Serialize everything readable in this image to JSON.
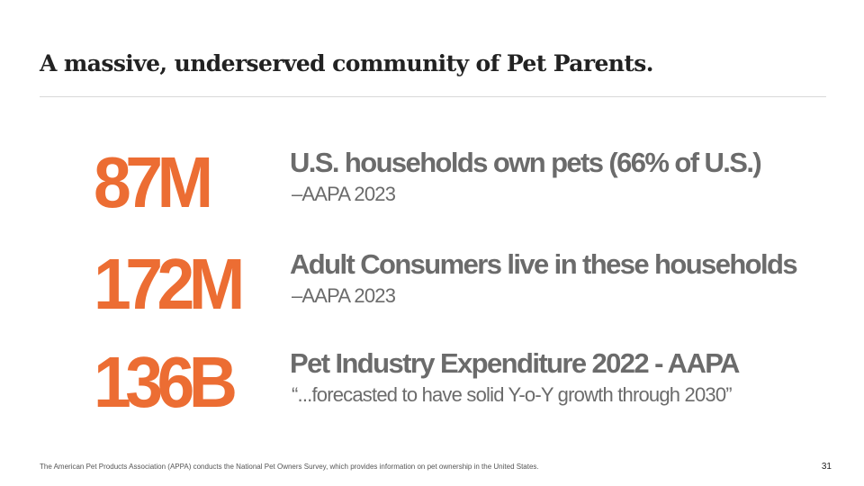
{
  "slide": {
    "title": "A massive, underserved community of Pet Parents.",
    "stats": [
      {
        "number": "87M",
        "heading": "U.S. households own pets (66% of U.S.)",
        "source": "–AAPA 2023"
      },
      {
        "number": "172M",
        "heading": "Adult Consumers live in these households",
        "source": "–AAPA 2023"
      },
      {
        "number": "136B",
        "heading": "Pet Industry Expenditure 2022 - AAPA",
        "source": "“...forecasted to have solid Y-o-Y growth through 2030”"
      }
    ],
    "footnote": "The American Pet Products Association (APPA) conducts the National Pet Owners Survey, which provides information on pet ownership in the United States.",
    "page_number": "31"
  },
  "colors": {
    "accent": "#ec6d33",
    "heading_gray": "#6b6b6b",
    "title": "#222222"
  }
}
